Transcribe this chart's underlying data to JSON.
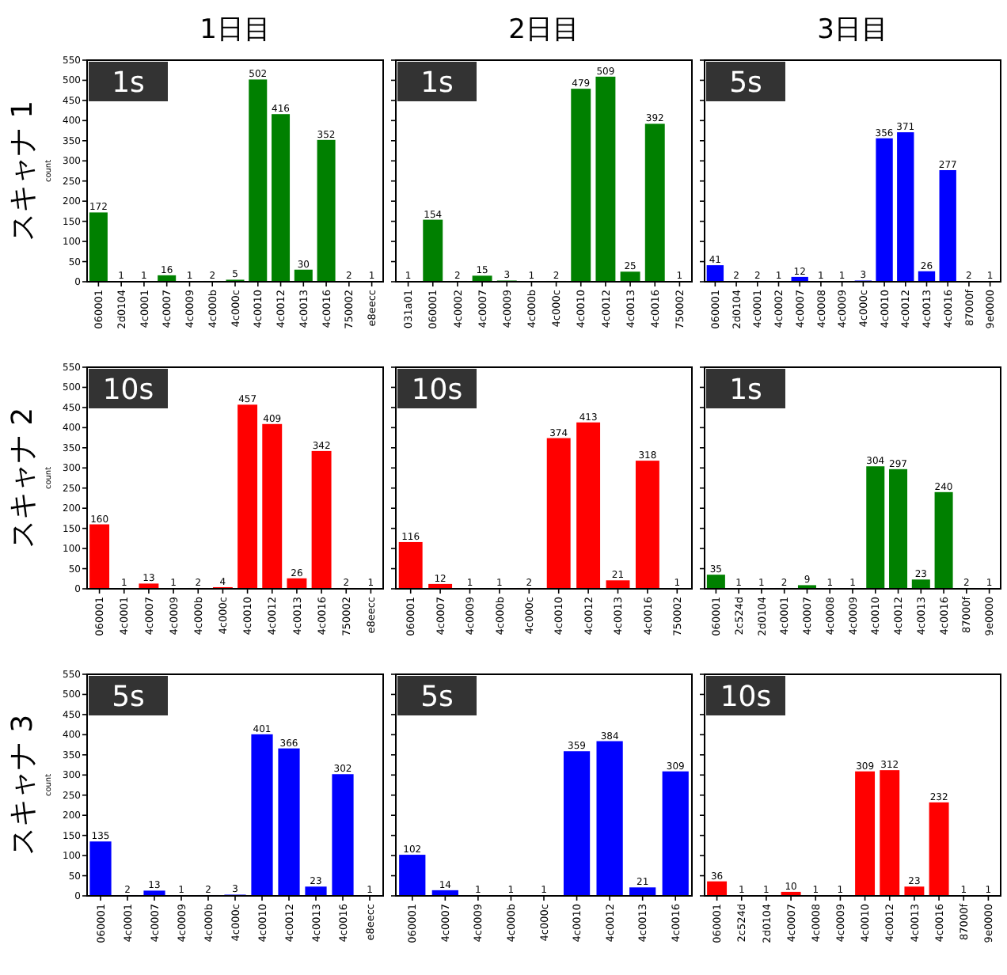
{
  "chart_data": [
    {
      "type": "bar",
      "title": "1日目",
      "ylabel": "count",
      "annotations": [
        "1s",
        "スキャナ 1"
      ],
      "categories": [
        "060001",
        "2d0104",
        "4c0001",
        "4c0007",
        "4c0009",
        "4c000b",
        "4c000c",
        "4c0010",
        "4c0012",
        "4c0013",
        "4c0016",
        "750002",
        "e8eecc"
      ],
      "values": [
        172,
        1,
        1,
        16,
        1,
        2,
        5,
        502,
        416,
        30,
        352,
        2,
        1
      ],
      "color": "#008000",
      "ylim": [
        0,
        550
      ],
      "yticks": [
        0,
        50,
        100,
        150,
        200,
        250,
        300,
        350,
        400,
        450,
        500,
        550
      ],
      "data_labels": true
    },
    {
      "type": "bar",
      "title": "2日目",
      "annotations": [
        "1s"
      ],
      "categories": [
        "031a01",
        "060001",
        "4c0002",
        "4c0007",
        "4c0009",
        "4c000b",
        "4c000c",
        "4c0010",
        "4c0012",
        "4c0013",
        "4c0016",
        "750002"
      ],
      "values": [
        1,
        154,
        2,
        15,
        3,
        1,
        2,
        479,
        509,
        25,
        392,
        1
      ],
      "color": "#008000",
      "ylim": [
        0,
        550
      ],
      "yticks": [
        0,
        50,
        100,
        150,
        200,
        250,
        300,
        350,
        400,
        450,
        500,
        550
      ],
      "data_labels": true,
      "tick_labels": "x"
    },
    {
      "type": "bar",
      "title": "3日目",
      "annotations": [
        "5s"
      ],
      "categories": [
        "060001",
        "2d0104",
        "4c0001",
        "4c0002",
        "4c0007",
        "4c0008",
        "4c0009",
        "4c000c",
        "4c0010",
        "4c0012",
        "4c0013",
        "4c0016",
        "87000f",
        "9e0000"
      ],
      "values": [
        41,
        2,
        2,
        1,
        12,
        1,
        1,
        3,
        356,
        371,
        26,
        277,
        2,
        1
      ],
      "color": "#0000ff",
      "ylim": [
        0,
        550
      ],
      "yticks": [
        0,
        50,
        100,
        150,
        200,
        250,
        300,
        350,
        400,
        450,
        500,
        550
      ],
      "data_labels": true,
      "tick_labels": "x"
    },
    {
      "type": "bar",
      "ylabel": "count",
      "annotations": [
        "10s",
        "スキャナ 2"
      ],
      "categories": [
        "060001",
        "4c0001",
        "4c0007",
        "4c0009",
        "4c000b",
        "4c000c",
        "4c0010",
        "4c0012",
        "4c0013",
        "4c0016",
        "750002",
        "e8eecc"
      ],
      "values": [
        160,
        1,
        13,
        1,
        2,
        4,
        457,
        409,
        26,
        342,
        2,
        1
      ],
      "color": "#ff0000",
      "ylim": [
        0,
        550
      ],
      "yticks": [
        0,
        50,
        100,
        150,
        200,
        250,
        300,
        350,
        400,
        450,
        500,
        550
      ],
      "data_labels": true
    },
    {
      "type": "bar",
      "annotations": [
        "10s"
      ],
      "categories": [
        "060001",
        "4c0007",
        "4c0009",
        "4c000b",
        "4c000c",
        "4c0010",
        "4c0012",
        "4c0013",
        "4c0016",
        "750002"
      ],
      "values": [
        116,
        12,
        1,
        1,
        2,
        374,
        413,
        21,
        318,
        1
      ],
      "color": "#ff0000",
      "ylim": [
        0,
        550
      ],
      "yticks": [
        0,
        50,
        100,
        150,
        200,
        250,
        300,
        350,
        400,
        450,
        500,
        550
      ],
      "data_labels": true,
      "tick_labels": "x"
    },
    {
      "type": "bar",
      "annotations": [
        "1s"
      ],
      "categories": [
        "060001",
        "2c524d",
        "2d0104",
        "4c0001",
        "4c0007",
        "4c0008",
        "4c0009",
        "4c0010",
        "4c0012",
        "4c0013",
        "4c0016",
        "87000f",
        "9e0000"
      ],
      "values": [
        35,
        1,
        1,
        2,
        9,
        1,
        1,
        304,
        297,
        23,
        240,
        2,
        1
      ],
      "color": "#008000",
      "ylim": [
        0,
        550
      ],
      "yticks": [
        0,
        50,
        100,
        150,
        200,
        250,
        300,
        350,
        400,
        450,
        500,
        550
      ],
      "data_labels": true,
      "tick_labels": "x"
    },
    {
      "type": "bar",
      "ylabel": "count",
      "annotations": [
        "5s",
        "スキャナ 3"
      ],
      "categories": [
        "060001",
        "4c0001",
        "4c0007",
        "4c0009",
        "4c000b",
        "4c000c",
        "4c0010",
        "4c0012",
        "4c0013",
        "4c0016",
        "e8eecc"
      ],
      "values": [
        135,
        2,
        13,
        1,
        2,
        3,
        401,
        366,
        23,
        302,
        1
      ],
      "color": "#0000ff",
      "ylim": [
        0,
        550
      ],
      "yticks": [
        0,
        50,
        100,
        150,
        200,
        250,
        300,
        350,
        400,
        450,
        500,
        550
      ],
      "data_labels": true
    },
    {
      "type": "bar",
      "annotations": [
        "5s"
      ],
      "categories": [
        "060001",
        "4c0007",
        "4c0009",
        "4c000b",
        "4c000c",
        "4c0010",
        "4c0012",
        "4c0013",
        "4c0016"
      ],
      "values": [
        102,
        14,
        1,
        1,
        1,
        359,
        384,
        21,
        309
      ],
      "color": "#0000ff",
      "ylim": [
        0,
        550
      ],
      "yticks": [
        0,
        50,
        100,
        150,
        200,
        250,
        300,
        350,
        400,
        450,
        500,
        550
      ],
      "data_labels": true,
      "tick_labels": "x"
    },
    {
      "type": "bar",
      "annotations": [
        "10s"
      ],
      "categories": [
        "060001",
        "2c524d",
        "2d0104",
        "4c0007",
        "4c0008",
        "4c0009",
        "4c0010",
        "4c0012",
        "4c0013",
        "4c0016",
        "87000f",
        "9e0000"
      ],
      "values": [
        36,
        1,
        1,
        10,
        1,
        1,
        309,
        312,
        23,
        232,
        1,
        1
      ],
      "color": "#ff0000",
      "ylim": [
        0,
        550
      ],
      "yticks": [
        0,
        50,
        100,
        150,
        200,
        250,
        300,
        350,
        400,
        450,
        500,
        550
      ],
      "data_labels": true,
      "tick_labels": "x"
    }
  ]
}
